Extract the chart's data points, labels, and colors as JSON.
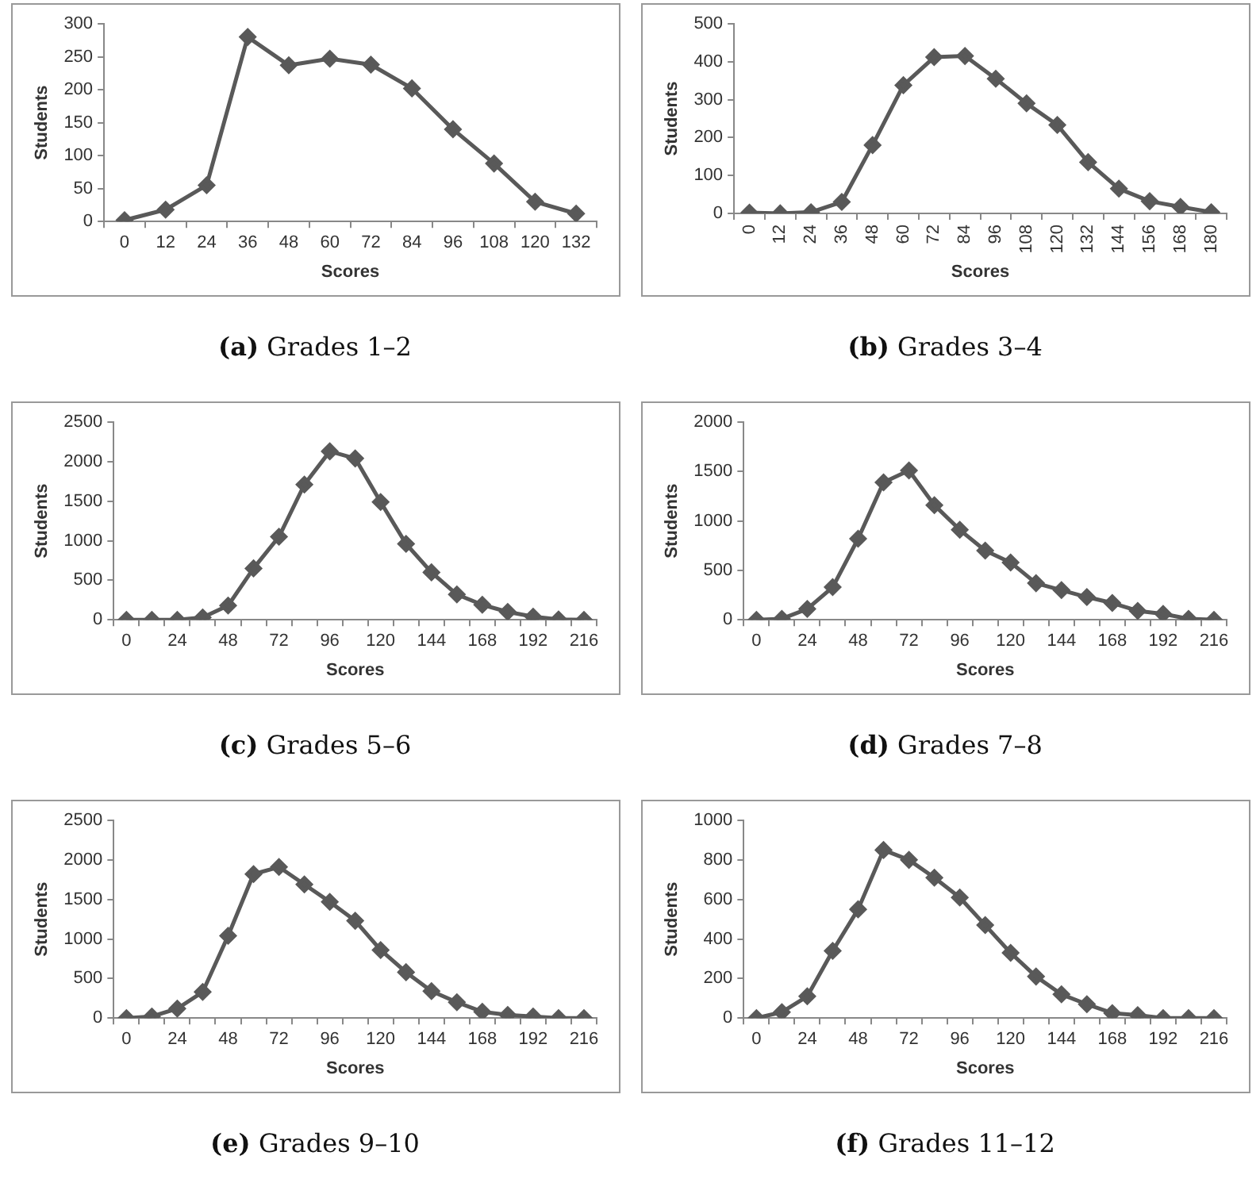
{
  "chart_data": [
    {
      "type": "line",
      "title": "(a) Grades 1–2",
      "xlabel": "Scores",
      "ylabel": "Students",
      "categories": [
        "0",
        "12",
        "24",
        "36",
        "48",
        "60",
        "72",
        "84",
        "96",
        "108",
        "120",
        "132"
      ],
      "color": "#595959",
      "marker": "diamond",
      "ylim": [
        0,
        300
      ],
      "yticks": [
        0,
        50,
        100,
        150,
        200,
        250,
        300
      ],
      "values": [
        2,
        18,
        55,
        280,
        237,
        247,
        238,
        202,
        140,
        88,
        30,
        12
      ]
    },
    {
      "type": "line",
      "title": "(b) Grades 3–4",
      "xlabel": "Scores",
      "ylabel": "Students",
      "categories": [
        "0",
        "12",
        "24",
        "36",
        "48",
        "60",
        "72",
        "84",
        "96",
        "108",
        "120",
        "132",
        "144",
        "156",
        "168",
        "180"
      ],
      "color": "#595959",
      "marker": "diamond",
      "ylim": [
        0,
        500
      ],
      "yticks": [
        0,
        100,
        200,
        300,
        400,
        500
      ],
      "values": [
        2,
        0,
        3,
        30,
        180,
        338,
        412,
        415,
        355,
        290,
        233,
        135,
        65,
        32,
        17,
        3
      ]
    },
    {
      "type": "line",
      "title": "(c) Grades 5–6",
      "xlabel": "Scores",
      "ylabel": "Students",
      "categories": [
        "0",
        null,
        "24",
        null,
        "48",
        null,
        "72",
        null,
        "96",
        null,
        "120",
        null,
        "144",
        null,
        "168",
        null,
        "192",
        null,
        "216"
      ],
      "color": "#595959",
      "marker": "diamond",
      "ylim": [
        0,
        2500
      ],
      "yticks": [
        0,
        500,
        1000,
        1500,
        2000,
        2500
      ],
      "values": [
        0,
        0,
        0,
        30,
        180,
        650,
        1050,
        1710,
        2130,
        2040,
        1490,
        960,
        600,
        320,
        190,
        100,
        40,
        5,
        0
      ]
    },
    {
      "type": "line",
      "title": "(d) Grades 7–8",
      "xlabel": "Scores",
      "ylabel": "Students",
      "categories": [
        "0",
        null,
        "24",
        null,
        "48",
        null,
        "72",
        null,
        "96",
        null,
        "120",
        null,
        "144",
        null,
        "168",
        null,
        "192",
        null,
        "216"
      ],
      "color": "#595959",
      "marker": "diamond",
      "ylim": [
        0,
        2000
      ],
      "yticks": [
        0,
        500,
        1000,
        1500,
        2000
      ],
      "values": [
        0,
        10,
        110,
        330,
        820,
        1390,
        1510,
        1160,
        910,
        700,
        580,
        370,
        300,
        230,
        170,
        90,
        60,
        10,
        0
      ]
    },
    {
      "type": "line",
      "title": "(e) Grades 9–10",
      "xlabel": "Scores",
      "ylabel": "Students",
      "categories": [
        "0",
        null,
        "24",
        null,
        "48",
        null,
        "72",
        null,
        "96",
        null,
        "120",
        null,
        "144",
        null,
        "168",
        null,
        "192",
        null,
        "216"
      ],
      "color": "#595959",
      "marker": "diamond",
      "ylim": [
        0,
        2500
      ],
      "yticks": [
        0,
        500,
        1000,
        1500,
        2000,
        2500
      ],
      "values": [
        0,
        20,
        120,
        330,
        1040,
        1820,
        1910,
        1690,
        1470,
        1230,
        860,
        580,
        340,
        200,
        80,
        40,
        20,
        0,
        0
      ]
    },
    {
      "type": "line",
      "title": "(f) Grades 11–12",
      "xlabel": "Scores",
      "ylabel": "Students",
      "categories": [
        "0",
        null,
        "24",
        null,
        "48",
        null,
        "72",
        null,
        "96",
        null,
        "120",
        null,
        "144",
        null,
        "168",
        null,
        "192",
        null,
        "216"
      ],
      "color": "#595959",
      "marker": "diamond",
      "ylim": [
        0,
        1000
      ],
      "yticks": [
        0,
        200,
        400,
        600,
        800,
        1000
      ],
      "values": [
        0,
        30,
        110,
        340,
        550,
        850,
        800,
        710,
        610,
        470,
        330,
        210,
        120,
        70,
        25,
        15,
        0,
        0,
        0
      ]
    }
  ]
}
